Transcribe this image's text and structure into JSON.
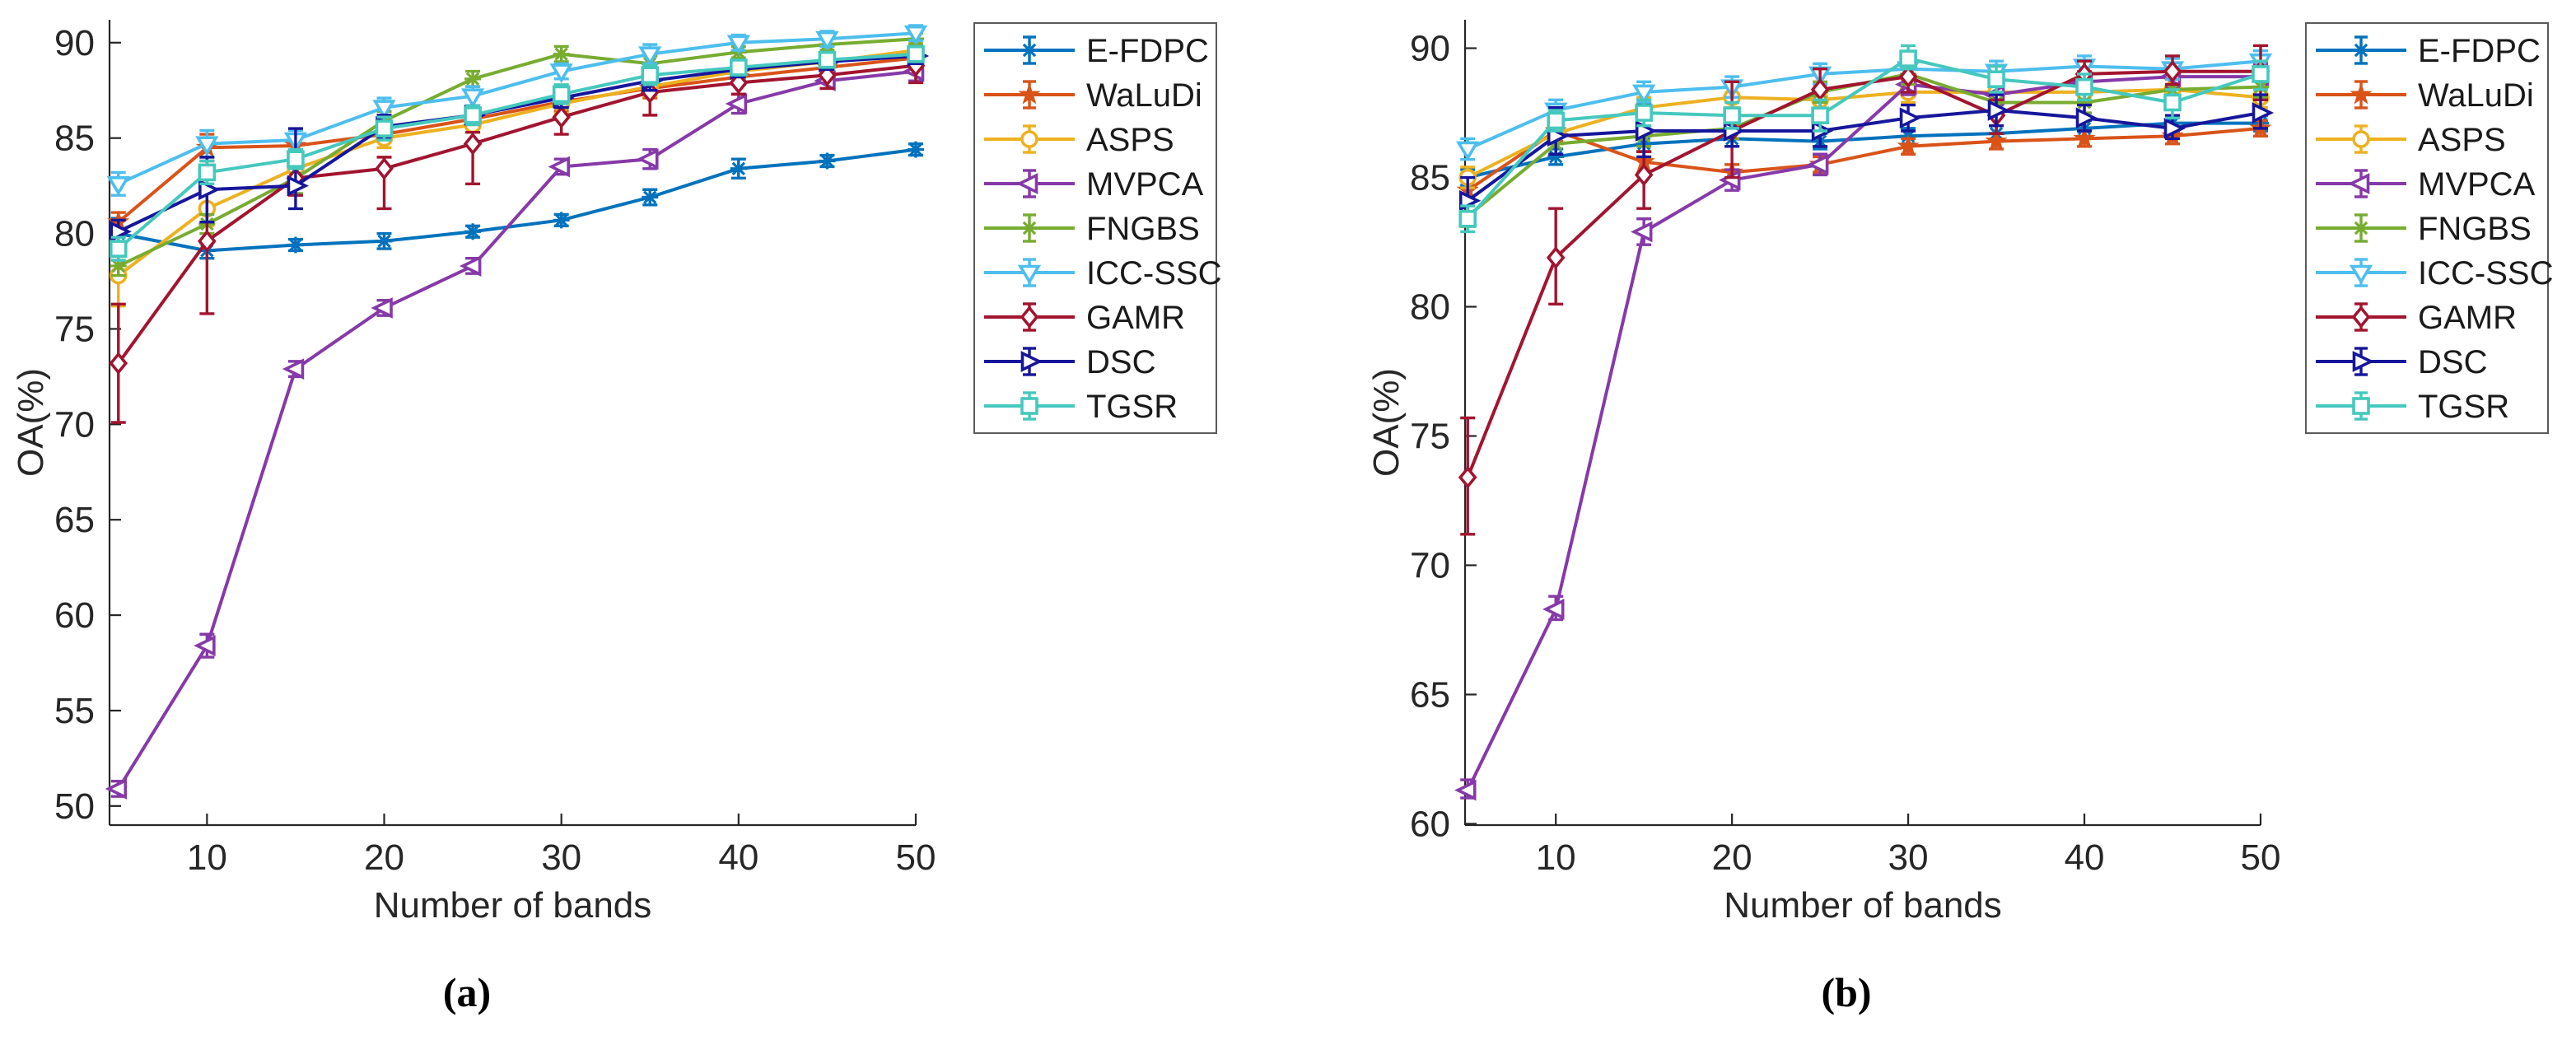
{
  "figure": {
    "type": "errorbar-line-comparison",
    "background": "#ffffff",
    "axis_color": "#262626",
    "captions": {
      "a": "(a)",
      "b": "(b)"
    }
  },
  "chart_data": [
    {
      "id": "a",
      "type": "line",
      "caption": "(a)",
      "xlabel": "Number of bands",
      "ylabel": "OA(%)",
      "xlim": [
        4.5,
        50
      ],
      "ylim": [
        49.0,
        91.2
      ],
      "xticks": [
        10,
        20,
        30,
        40,
        50
      ],
      "yticks": [
        50,
        55,
        60,
        65,
        70,
        75,
        80,
        85,
        90
      ],
      "grid": false,
      "legend_position": "outside-top-right",
      "x": [
        5,
        10,
        15,
        20,
        25,
        30,
        35,
        40,
        45,
        50
      ],
      "series": [
        {
          "name": "E-FDPC",
          "color": "#0072BD",
          "marker": "asterisk",
          "y": [
            80.0,
            79.1,
            79.4,
            79.6,
            80.1,
            80.7,
            81.9,
            83.4,
            83.8,
            84.4
          ],
          "lo": [
            79.2,
            78.7,
            79.1,
            79.2,
            79.8,
            80.4,
            81.5,
            82.9,
            83.5,
            84.1
          ],
          "hi": [
            80.8,
            79.5,
            79.7,
            80.0,
            80.4,
            81.0,
            82.3,
            83.9,
            84.1,
            84.7
          ]
        },
        {
          "name": "WaLuDi",
          "color": "#D95319",
          "marker": "star",
          "y": [
            80.6,
            84.5,
            84.6,
            85.2,
            86.0,
            86.9,
            87.6,
            88.2,
            88.7,
            89.2
          ],
          "lo": [
            80.1,
            83.8,
            84.2,
            84.8,
            85.5,
            86.4,
            87.1,
            87.8,
            88.3,
            88.8
          ],
          "hi": [
            81.1,
            85.2,
            85.0,
            85.6,
            86.5,
            87.4,
            88.1,
            88.6,
            89.1,
            89.6
          ]
        },
        {
          "name": "ASPS",
          "color": "#EDB120",
          "marker": "circle",
          "y": [
            77.8,
            81.3,
            83.4,
            85.0,
            85.7,
            86.8,
            87.7,
            88.5,
            89.0,
            89.6
          ],
          "lo": [
            76.2,
            80.4,
            82.8,
            84.5,
            84.8,
            86.3,
            87.2,
            88.1,
            88.6,
            89.2
          ],
          "hi": [
            79.3,
            82.2,
            84.0,
            85.5,
            86.6,
            87.3,
            88.2,
            88.9,
            89.4,
            90.0
          ]
        },
        {
          "name": "MVPCA",
          "color": "#8639A8",
          "marker": "triangle-left",
          "y": [
            50.9,
            58.4,
            72.9,
            76.1,
            78.3,
            83.5,
            83.9,
            86.8,
            88.0,
            88.5
          ],
          "lo": [
            50.5,
            57.8,
            72.5,
            75.7,
            77.9,
            83.1,
            83.4,
            86.3,
            87.6,
            88.0
          ],
          "hi": [
            51.3,
            59.0,
            73.3,
            76.5,
            78.7,
            83.9,
            84.4,
            87.3,
            88.4,
            89.0
          ]
        },
        {
          "name": "FNGBS",
          "color": "#77AC30",
          "marker": "asterisk",
          "y": [
            78.3,
            80.5,
            82.9,
            85.9,
            88.1,
            89.4,
            88.9,
            89.5,
            89.9,
            90.2
          ],
          "lo": [
            77.8,
            80.0,
            82.1,
            85.4,
            87.7,
            89.0,
            88.5,
            89.2,
            89.6,
            89.9
          ],
          "hi": [
            78.8,
            81.0,
            83.7,
            86.4,
            88.5,
            89.8,
            89.3,
            89.8,
            90.2,
            90.5
          ]
        },
        {
          "name": "ICC-SSC",
          "color": "#4DBEEE",
          "marker": "triangle-down",
          "y": [
            82.6,
            84.7,
            84.9,
            86.6,
            87.2,
            88.5,
            89.4,
            90.0,
            90.2,
            90.5
          ],
          "lo": [
            82.0,
            84.0,
            84.4,
            86.1,
            86.7,
            88.1,
            88.9,
            89.6,
            89.8,
            90.1
          ],
          "hi": [
            83.2,
            85.4,
            85.4,
            87.1,
            87.7,
            88.9,
            89.9,
            90.4,
            90.6,
            90.9
          ]
        },
        {
          "name": "GAMR",
          "color": "#A2142F",
          "marker": "diamond",
          "y": [
            73.2,
            79.6,
            82.9,
            83.4,
            84.7,
            86.1,
            87.4,
            87.9,
            88.3,
            88.8
          ],
          "lo": [
            70.1,
            75.8,
            82.0,
            81.3,
            82.6,
            85.2,
            86.2,
            87.3,
            87.6,
            87.9
          ],
          "hi": [
            76.3,
            83.5,
            83.8,
            84.0,
            85.3,
            86.6,
            88.0,
            88.4,
            88.9,
            89.6
          ]
        },
        {
          "name": "DSC",
          "color": "#16169C",
          "marker": "triangle-right",
          "y": [
            80.1,
            82.3,
            82.5,
            85.6,
            86.2,
            87.1,
            88.0,
            88.6,
            89.0,
            89.3
          ],
          "lo": [
            79.5,
            80.6,
            81.3,
            85.0,
            85.7,
            86.6,
            87.5,
            88.2,
            88.6,
            88.9
          ],
          "hi": [
            80.7,
            84.0,
            85.5,
            86.2,
            86.7,
            87.6,
            88.5,
            89.0,
            89.4,
            89.7
          ]
        },
        {
          "name": "TGSR",
          "color": "#45C8BE",
          "marker": "square",
          "y": [
            79.2,
            83.2,
            83.9,
            85.5,
            86.2,
            87.3,
            88.3,
            88.7,
            89.1,
            89.4
          ],
          "lo": [
            78.6,
            82.6,
            83.4,
            84.9,
            85.7,
            86.8,
            87.8,
            88.3,
            88.7,
            89.0
          ],
          "hi": [
            79.8,
            83.8,
            84.4,
            86.1,
            86.7,
            87.8,
            88.8,
            89.1,
            89.5,
            89.8
          ]
        }
      ]
    },
    {
      "id": "b",
      "type": "line",
      "caption": "(b)",
      "xlabel": "Number of bands",
      "ylabel": "OA(%)",
      "xlim": [
        4.85,
        50
      ],
      "ylim": [
        59.95,
        91.1
      ],
      "xticks": [
        10,
        20,
        30,
        40,
        50
      ],
      "yticks": [
        60,
        65,
        70,
        75,
        80,
        85,
        90
      ],
      "grid": false,
      "legend_position": "outside-top-right",
      "x": [
        5,
        10,
        15,
        20,
        25,
        30,
        35,
        40,
        45,
        50
      ],
      "series": [
        {
          "name": "E-FDPC",
          "color": "#0072BD",
          "marker": "asterisk",
          "y": [
            85.0,
            85.8,
            86.3,
            86.5,
            86.4,
            86.6,
            86.7,
            86.9,
            87.1,
            87.1
          ],
          "lo": [
            84.7,
            85.5,
            86.0,
            86.2,
            86.1,
            86.3,
            86.4,
            86.6,
            86.8,
            86.8
          ],
          "hi": [
            85.3,
            86.1,
            86.6,
            86.8,
            86.7,
            86.9,
            87.0,
            87.2,
            87.4,
            87.4
          ]
        },
        {
          "name": "WaLuDi",
          "color": "#D95319",
          "marker": "star",
          "y": [
            84.5,
            86.8,
            85.6,
            85.2,
            85.5,
            86.2,
            86.4,
            86.5,
            86.6,
            86.9
          ],
          "lo": [
            84.1,
            86.4,
            85.2,
            84.9,
            85.2,
            85.9,
            86.1,
            86.2,
            86.3,
            86.6
          ],
          "hi": [
            84.9,
            87.2,
            86.0,
            85.5,
            85.8,
            86.5,
            86.7,
            86.8,
            86.9,
            87.2
          ]
        },
        {
          "name": "ASPS",
          "color": "#EDB120",
          "marker": "circle",
          "y": [
            85.0,
            86.7,
            87.7,
            88.1,
            88.0,
            88.3,
            88.3,
            88.3,
            88.4,
            88.1
          ],
          "lo": [
            84.6,
            86.3,
            87.3,
            87.7,
            87.6,
            87.9,
            87.9,
            87.9,
            88.0,
            87.7
          ],
          "hi": [
            85.4,
            87.1,
            88.1,
            88.5,
            88.4,
            88.7,
            88.7,
            88.7,
            88.8,
            88.5
          ]
        },
        {
          "name": "MVPCA",
          "color": "#8639A8",
          "marker": "triangle-left",
          "y": [
            61.3,
            68.3,
            82.9,
            84.9,
            85.5,
            88.6,
            88.2,
            88.7,
            88.9,
            88.9
          ],
          "lo": [
            61.0,
            67.9,
            82.4,
            84.5,
            85.1,
            88.2,
            87.8,
            88.3,
            88.5,
            88.4
          ],
          "hi": [
            61.7,
            68.8,
            83.4,
            85.3,
            85.9,
            89.0,
            88.6,
            89.1,
            89.3,
            89.4
          ]
        },
        {
          "name": "FNGBS",
          "color": "#77AC30",
          "marker": "asterisk",
          "y": [
            83.5,
            86.3,
            86.6,
            86.9,
            88.3,
            89.0,
            87.9,
            87.9,
            88.4,
            88.5
          ],
          "lo": [
            83.1,
            85.9,
            86.2,
            86.5,
            87.9,
            88.6,
            87.5,
            87.5,
            88.0,
            88.1
          ],
          "hi": [
            83.9,
            86.7,
            87.0,
            87.3,
            88.7,
            89.4,
            88.3,
            88.3,
            88.8,
            88.9
          ]
        },
        {
          "name": "ICC-SSC",
          "color": "#4DBEEE",
          "marker": "triangle-down",
          "y": [
            86.1,
            87.6,
            88.3,
            88.5,
            89.0,
            89.2,
            89.1,
            89.3,
            89.2,
            89.5
          ],
          "lo": [
            85.7,
            87.2,
            87.9,
            88.1,
            88.6,
            88.8,
            88.7,
            88.9,
            88.8,
            89.1
          ],
          "hi": [
            86.5,
            88.0,
            88.7,
            88.9,
            89.4,
            89.6,
            89.5,
            89.7,
            89.6,
            89.9
          ]
        },
        {
          "name": "GAMR",
          "color": "#A2142F",
          "marker": "diamond",
          "y": [
            73.4,
            81.9,
            85.1,
            86.8,
            88.4,
            88.9,
            87.4,
            89.0,
            89.1,
            89.1
          ],
          "lo": [
            71.2,
            80.1,
            83.8,
            85.0,
            87.6,
            88.3,
            86.7,
            88.5,
            88.6,
            88.0
          ],
          "hi": [
            75.7,
            83.8,
            86.0,
            88.7,
            89.2,
            89.4,
            88.0,
            89.5,
            89.7,
            90.1
          ]
        },
        {
          "name": "DSC",
          "color": "#16169C",
          "marker": "triangle-right",
          "y": [
            84.1,
            86.6,
            86.8,
            86.8,
            86.8,
            87.3,
            87.6,
            87.3,
            86.9,
            87.5
          ],
          "lo": [
            83.2,
            85.9,
            85.8,
            86.2,
            86.2,
            86.8,
            87.0,
            86.8,
            86.5,
            86.9
          ],
          "hi": [
            85.0,
            87.7,
            87.8,
            87.3,
            87.4,
            87.8,
            88.2,
            87.8,
            87.4,
            88.2
          ]
        },
        {
          "name": "TGSR",
          "color": "#45C8BE",
          "marker": "square",
          "y": [
            83.4,
            87.2,
            87.5,
            87.4,
            87.4,
            89.6,
            88.8,
            88.5,
            87.9,
            89.0
          ],
          "lo": [
            82.9,
            86.8,
            87.0,
            86.9,
            86.8,
            89.2,
            88.3,
            88.0,
            87.3,
            88.4
          ],
          "hi": [
            83.9,
            87.6,
            88.0,
            87.9,
            88.0,
            90.1,
            89.3,
            89.0,
            88.4,
            89.5
          ]
        }
      ]
    }
  ]
}
